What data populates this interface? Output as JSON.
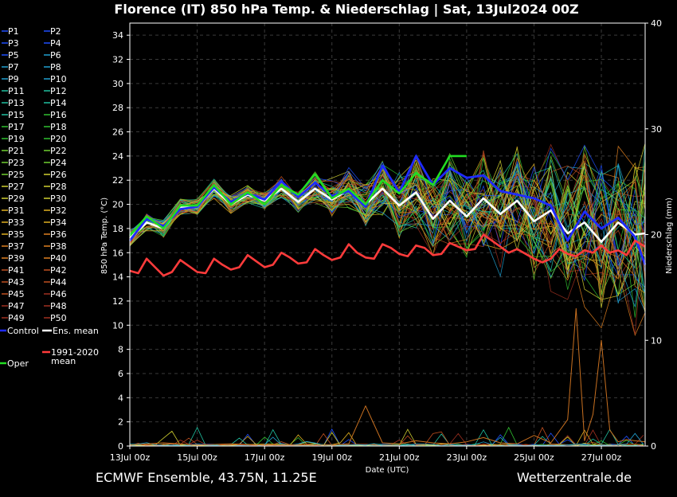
{
  "chart_data": {
    "type": "line",
    "title": "Florence  (IT)  850 hPa Temp. & Niederschlag | Sat, 13Jul2024 00Z",
    "xlabel": "Date (UTC)",
    "ylabel": "850 hPa Temp. (°C)",
    "y2label": "Niederschlag (mm)",
    "ylim": [
      0,
      35
    ],
    "y2lim": [
      0,
      40
    ],
    "xlim": [
      0,
      15.3
    ],
    "grid": true,
    "legend_position": "left",
    "footer_left": "ECMWF Ensemble, 43.75N, 11.25E",
    "footer_right": "Wetterzentrale.de",
    "x_ticks": [
      {
        "label": "13Jul 00z",
        "day": 0
      },
      {
        "label": "15Jul 00z",
        "day": 2
      },
      {
        "label": "17Jul 00z",
        "day": 4
      },
      {
        "label": "19Jul 00z",
        "day": 6
      },
      {
        "label": "21Jul 00z",
        "day": 8
      },
      {
        "label": "23Jul 00z",
        "day": 10
      },
      {
        "label": "25Jul 00z",
        "day": 12
      },
      {
        "label": "27Jul 00z",
        "day": 14
      }
    ],
    "y_ticks": [
      0,
      2,
      4,
      6,
      8,
      10,
      12,
      14,
      16,
      18,
      20,
      22,
      24,
      26,
      28,
      30,
      32,
      34
    ],
    "y2_ticks": [
      0,
      10,
      20,
      30,
      40
    ],
    "legend": [
      [
        "P1",
        "P2"
      ],
      [
        "P3",
        "P4"
      ],
      [
        "P5",
        "P6"
      ],
      [
        "P7",
        "P8"
      ],
      [
        "P9",
        "P10"
      ],
      [
        "P11",
        "P12"
      ],
      [
        "P13",
        "P14"
      ],
      [
        "P15",
        "P16"
      ],
      [
        "P17",
        "P18"
      ],
      [
        "P19",
        "P20"
      ],
      [
        "P21",
        "P22"
      ],
      [
        "P23",
        "P24"
      ],
      [
        "P25",
        "P26"
      ],
      [
        "P27",
        "P28"
      ],
      [
        "P29",
        "P30"
      ],
      [
        "P31",
        "P32"
      ],
      [
        "P33",
        "P34"
      ],
      [
        "P35",
        "P36"
      ],
      [
        "P37",
        "P38"
      ],
      [
        "P39",
        "P40"
      ],
      [
        "P41",
        "P42"
      ],
      [
        "P43",
        "P44"
      ],
      [
        "P45",
        "P46"
      ],
      [
        "P47",
        "P48"
      ],
      [
        "P49",
        "P50"
      ]
    ],
    "legend_special": [
      {
        "label": "Control",
        "color": "#1f2bff"
      },
      {
        "label": "Ens. mean",
        "color": "#ffffff"
      },
      {
        "label": "1991-2020 mean",
        "color": "#ff3b3b"
      },
      {
        "label": "Oper",
        "color": "#22dd22"
      }
    ],
    "member_colors": [
      "#1f4fff",
      "#20a0d0",
      "#20c0a0",
      "#30c030",
      "#70d030",
      "#d0d030",
      "#e0b020",
      "#e08020",
      "#c05020",
      "#a03020"
    ],
    "series": [
      {
        "name": "Ens. mean",
        "color": "#ffffff",
        "x": [
          0,
          0.5,
          1,
          1.5,
          2,
          2.5,
          3,
          3.5,
          4,
          4.5,
          5,
          5.5,
          6,
          6.5,
          7,
          7.5,
          8,
          8.5,
          9,
          9.5,
          10,
          10.5,
          11,
          11.5,
          12,
          12.5,
          13,
          13.5,
          14,
          14.5,
          15,
          15.3
        ],
        "y": [
          17.2,
          18.5,
          18.0,
          19.8,
          19.8,
          21.3,
          20.0,
          20.8,
          20.3,
          21.3,
          20.2,
          21.3,
          20.4,
          21.2,
          20.0,
          21.3,
          19.9,
          21.0,
          18.8,
          20.3,
          19.0,
          20.5,
          19.2,
          20.3,
          18.6,
          19.5,
          17.6,
          18.5,
          16.9,
          18.5,
          17.5,
          17.6
        ]
      },
      {
        "name": "Control",
        "color": "#1f2bff",
        "x": [
          0,
          0.5,
          1,
          1.5,
          2,
          2.5,
          3,
          3.5,
          4,
          4.5,
          5,
          5.5,
          6,
          6.5,
          7,
          7.5,
          8,
          8.5,
          9,
          9.5,
          10,
          10.5,
          11,
          11.5,
          12,
          12.5,
          13,
          13.5,
          14,
          14.5,
          15,
          15.3
        ],
        "y": [
          17.0,
          18.8,
          18.2,
          19.6,
          19.8,
          21.4,
          20.2,
          20.9,
          20.4,
          21.9,
          20.6,
          21.8,
          20.7,
          21.1,
          19.8,
          23.2,
          21.0,
          24.0,
          21.6,
          23.0,
          22.2,
          22.4,
          21.1,
          20.8,
          20.5,
          19.9,
          17.0,
          19.4,
          18.0,
          18.9,
          17.3,
          15.0
        ]
      },
      {
        "name": "Oper",
        "color": "#22dd22",
        "x": [
          0,
          0.5,
          1,
          1.5,
          2,
          2.5,
          3,
          3.5,
          4,
          4.5,
          5,
          5.5,
          6,
          6.5,
          7,
          7.5,
          8,
          8.5,
          9,
          9.5,
          10
        ],
        "y": [
          17.4,
          19.0,
          18.0,
          19.9,
          19.9,
          21.6,
          20.0,
          21.0,
          20.0,
          21.6,
          20.8,
          22.5,
          20.5,
          21.3,
          20.0,
          22.0,
          20.9,
          22.6,
          21.6,
          24.0,
          24.0
        ]
      },
      {
        "name": "1991-2020 mean",
        "color": "#ff3b3b",
        "x": [
          0,
          0.25,
          0.5,
          0.75,
          1,
          1.25,
          1.5,
          1.75,
          2,
          2.25,
          2.5,
          2.75,
          3,
          3.25,
          3.5,
          3.75,
          4,
          4.25,
          4.5,
          4.75,
          5,
          5.25,
          5.5,
          5.75,
          6,
          6.25,
          6.5,
          6.75,
          7,
          7.25,
          7.5,
          7.75,
          8,
          8.25,
          8.5,
          8.75,
          9,
          9.25,
          9.5,
          9.75,
          10,
          10.25,
          10.5,
          10.75,
          11,
          11.25,
          11.5,
          11.75,
          12,
          12.25,
          12.5,
          12.75,
          13,
          13.25,
          13.5,
          13.75,
          14,
          14.25,
          14.5,
          14.75,
          15,
          15.3
        ],
        "y": [
          14.5,
          14.3,
          15.5,
          14.8,
          14.1,
          14.4,
          15.4,
          14.9,
          14.4,
          14.3,
          15.5,
          15.0,
          14.6,
          14.8,
          15.8,
          15.3,
          14.8,
          15.0,
          16.0,
          15.6,
          15.1,
          15.2,
          16.3,
          15.8,
          15.4,
          15.6,
          16.7,
          16.0,
          15.6,
          15.5,
          16.7,
          16.4,
          15.9,
          15.7,
          16.6,
          16.4,
          15.8,
          15.9,
          16.8,
          16.5,
          16.2,
          16.3,
          17.5,
          17.0,
          16.5,
          16.0,
          16.3,
          15.9,
          15.5,
          15.2,
          15.5,
          16.3,
          15.9,
          15.7,
          16.2,
          16.0,
          16.6,
          16.0,
          16.2,
          15.8,
          17.0,
          16.5
        ]
      },
      {
        "name": "Niederschlag (max member)",
        "axis": "y2",
        "color": "#c87020",
        "x": [
          0,
          1,
          2,
          3,
          4,
          5,
          6,
          6.5,
          7,
          7.5,
          8,
          8.5,
          9,
          9.5,
          10,
          10.5,
          11,
          11.5,
          12,
          12.5,
          13,
          13.25,
          13.5,
          13.75,
          14,
          14.25,
          14.5,
          14.75,
          15,
          15.3
        ],
        "y": [
          0.1,
          0.3,
          0.1,
          0.2,
          0.1,
          0.1,
          0.1,
          0.2,
          3.8,
          0.3,
          0.2,
          0.5,
          0.3,
          0.2,
          0.4,
          0.8,
          0.3,
          0.2,
          1.0,
          0.3,
          2.5,
          13.0,
          0.5,
          3.0,
          10.0,
          1.5,
          0.4,
          0.6,
          0.5,
          0.4
        ]
      }
    ]
  }
}
